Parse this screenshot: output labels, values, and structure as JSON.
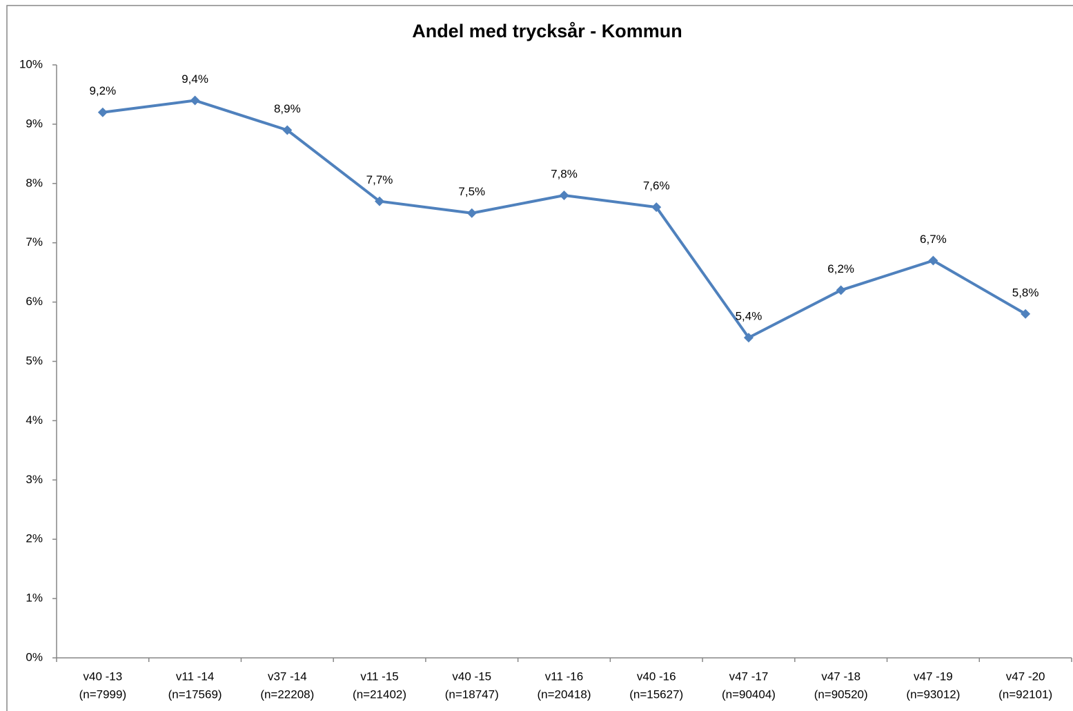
{
  "chart_data": {
    "type": "line",
    "title": "Andel med trycksår - Kommun",
    "categories": [
      [
        "v40 -13",
        "(n=7999)"
      ],
      [
        "v11 -14",
        "(n=17569)"
      ],
      [
        "v37 -14",
        "(n=22208)"
      ],
      [
        "v11 -15",
        "(n=21402)"
      ],
      [
        "v40 -15",
        "(n=18747)"
      ],
      [
        "v11 -16",
        "(n=20418)"
      ],
      [
        "v40 -16",
        "(n=15627)"
      ],
      [
        "v47 -17",
        "(n=90404)"
      ],
      [
        "v47 -18",
        "(n=90520)"
      ],
      [
        "v47 -19",
        "(n=93012)"
      ],
      [
        "v47 -20",
        "(n=92101)"
      ]
    ],
    "series": [
      {
        "name": "Andel med trycksår",
        "color": "#4f81bd",
        "values": [
          9.2,
          9.4,
          8.9,
          7.7,
          7.5,
          7.8,
          7.6,
          5.4,
          6.2,
          6.7,
          5.8
        ],
        "value_labels": [
          "9,2%",
          "9,4%",
          "8,9%",
          "7,7%",
          "7,5%",
          "7,8%",
          "7,6%",
          "5,4%",
          "6,2%",
          "6,7%",
          "5,8%"
        ]
      }
    ],
    "ylim": [
      0,
      10
    ],
    "yticks": [
      {
        "value": 0,
        "label": "0%"
      },
      {
        "value": 1,
        "label": "1%"
      },
      {
        "value": 2,
        "label": "2%"
      },
      {
        "value": 3,
        "label": "3%"
      },
      {
        "value": 4,
        "label": "4%"
      },
      {
        "value": 5,
        "label": "5%"
      },
      {
        "value": 6,
        "label": "6%"
      },
      {
        "value": 7,
        "label": "7%"
      },
      {
        "value": 8,
        "label": "8%"
      },
      {
        "value": 9,
        "label": "9%"
      },
      {
        "value": 10,
        "label": "10%"
      }
    ],
    "grid": false
  }
}
